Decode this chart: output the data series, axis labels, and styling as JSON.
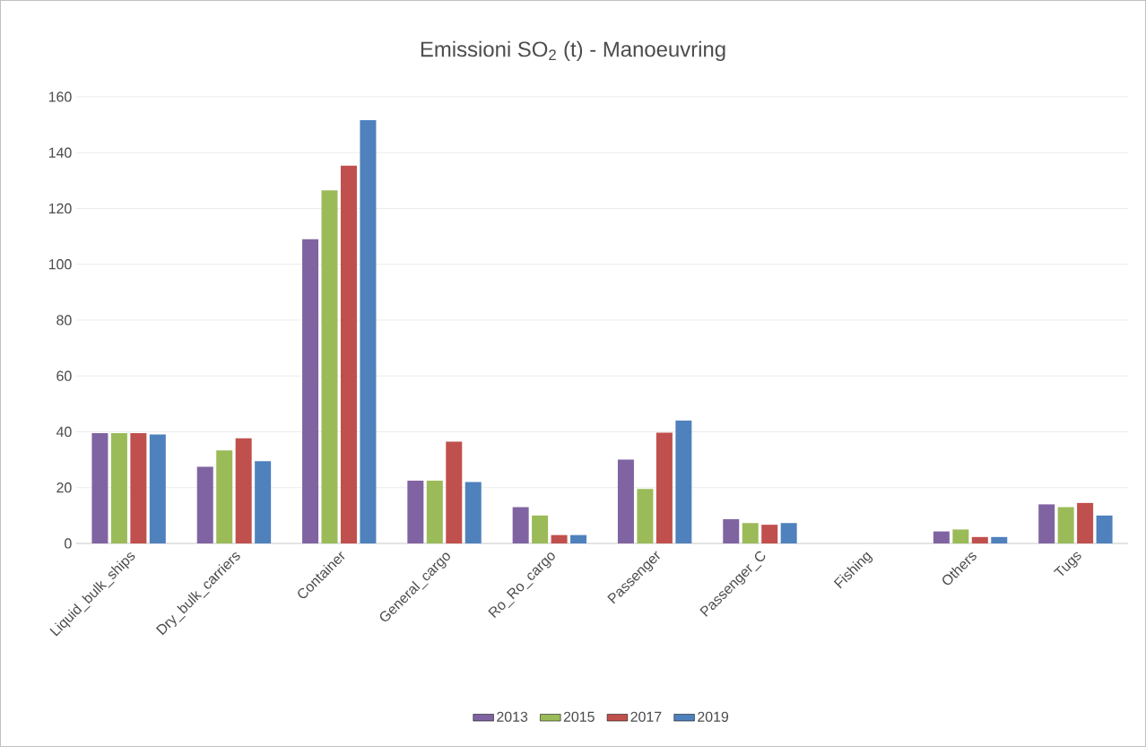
{
  "chart_data": {
    "type": "bar",
    "title": "Emissioni SO$_{2}$ (t) - Manoeuvring",
    "categories": [
      "Liquid_bulk_ships",
      "Dry_bulk_carriers",
      "Container",
      "General_cargo",
      "Ro_Ro_cargo",
      "Passenger",
      "Passenger_C",
      "Fishing",
      "Others",
      "Tugs"
    ],
    "series": [
      {
        "name": "2013",
        "color": "#8064a2",
        "values": [
          39.5,
          27.5,
          109,
          22.5,
          13,
          30,
          8.7,
          0,
          4.3,
          14
        ]
      },
      {
        "name": "2015",
        "color": "#9bbb59",
        "values": [
          39.5,
          33.3,
          126.5,
          22.5,
          10,
          19.5,
          7.3,
          0,
          5,
          13
        ]
      },
      {
        "name": "2017",
        "color": "#c0504d",
        "values": [
          39.5,
          37.7,
          135.3,
          36.5,
          3,
          39.7,
          6.7,
          0,
          2.3,
          14.5
        ]
      },
      {
        "name": "2019",
        "color": "#4f81bd",
        "values": [
          39,
          29.5,
          151.6,
          22,
          3,
          44,
          7.3,
          0,
          2.3,
          10
        ]
      }
    ],
    "ylim": [
      0,
      160
    ],
    "yticks": [
      0,
      20,
      40,
      60,
      80,
      100,
      120,
      140,
      160
    ],
    "grid": "y",
    "legend": "bottom"
  }
}
